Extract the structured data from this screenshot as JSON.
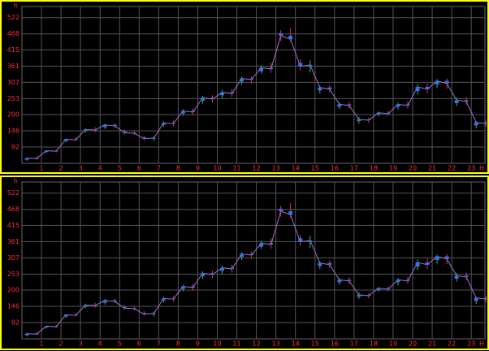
{
  "chart_data": [
    {
      "type": "candlestick",
      "y_unit": "h",
      "x_unit": "H",
      "xlim": [
        0,
        23.7
      ],
      "xticks": [
        1,
        2,
        3,
        4,
        5,
        6,
        7,
        8,
        9,
        10,
        11,
        12,
        13,
        14,
        15,
        16,
        17,
        18,
        19,
        20,
        21,
        22,
        23
      ],
      "ylim": [
        38,
        559
      ],
      "yticks": [
        92,
        146,
        200,
        253,
        307,
        361,
        415,
        468,
        522
      ],
      "grid": true,
      "color": "#3a6ef0",
      "up_wick_color": "#30c040",
      "down_wick_color": "#e03040",
      "line_color": "#a070c8",
      "x": [
        0.25,
        0.75,
        1.25,
        1.75,
        2.25,
        2.75,
        3.25,
        3.75,
        4.25,
        4.75,
        5.25,
        5.75,
        6.25,
        6.75,
        7.25,
        7.75,
        8.25,
        8.75,
        9.25,
        9.75,
        10.25,
        10.75,
        11.25,
        11.75,
        12.25,
        12.75,
        13.25,
        13.75,
        14.25,
        14.75,
        15.25,
        15.75,
        16.25,
        16.75,
        17.25,
        17.75,
        18.25,
        18.75,
        19.25,
        19.75,
        20.25,
        20.75,
        21.25,
        21.75,
        22.25,
        22.75,
        23.25,
        23.75
      ],
      "open": [
        50,
        55,
        76,
        80,
        112,
        118,
        145,
        150,
        158,
        166,
        144,
        140,
        124,
        120,
        166,
        172,
        204,
        212,
        246,
        256,
        264,
        274,
        310,
        320,
        344,
        356,
        470,
        462,
        372,
        360,
        280,
        290,
        226,
        234,
        178,
        184,
        200,
        206,
        226,
        234,
        278,
        292,
        300,
        312,
        238,
        248,
        164,
        174
      ],
      "high": [
        58,
        60,
        82,
        84,
        120,
        124,
        155,
        158,
        170,
        172,
        150,
        146,
        130,
        128,
        178,
        180,
        218,
        220,
        262,
        264,
        282,
        284,
        326,
        328,
        364,
        372,
        480,
        488,
        384,
        380,
        296,
        298,
        240,
        242,
        192,
        190,
        210,
        212,
        240,
        244,
        302,
        304,
        318,
        320,
        256,
        258,
        178,
        180
      ],
      "low": [
        46,
        50,
        72,
        74,
        108,
        112,
        140,
        142,
        152,
        156,
        134,
        132,
        114,
        112,
        158,
        160,
        196,
        198,
        236,
        240,
        254,
        258,
        300,
        304,
        336,
        338,
        444,
        440,
        346,
        340,
        270,
        274,
        218,
        220,
        170,
        172,
        194,
        196,
        216,
        220,
        266,
        270,
        288,
        286,
        228,
        232,
        154,
        160
      ],
      "close": [
        55,
        54,
        80,
        78,
        118,
        116,
        150,
        149,
        166,
        162,
        140,
        138,
        120,
        122,
        172,
        170,
        212,
        208,
        256,
        251,
        274,
        270,
        320,
        316,
        356,
        351,
        462,
        450,
        360,
        365,
        290,
        284,
        234,
        230,
        184,
        181,
        206,
        203,
        234,
        230,
        292,
        284,
        312,
        303,
        248,
        243,
        174,
        170
      ]
    },
    {
      "type": "candlestick",
      "y_unit": "h",
      "x_unit": "H",
      "xlim": [
        0,
        23.7
      ],
      "xticks": [
        1,
        2,
        3,
        4,
        5,
        6,
        7,
        8,
        9,
        10,
        11,
        12,
        13,
        14,
        15,
        16,
        17,
        18,
        19,
        20,
        21,
        22,
        23
      ],
      "ylim": [
        38,
        559
      ],
      "yticks": [
        92,
        146,
        200,
        253,
        307,
        361,
        415,
        468,
        522
      ],
      "grid": true,
      "color": "#3a6ef0",
      "up_wick_color": "#30c040",
      "down_wick_color": "#e03040",
      "line_color": "#a070c8",
      "x": [
        0.25,
        0.75,
        1.25,
        1.75,
        2.25,
        2.75,
        3.25,
        3.75,
        4.25,
        4.75,
        5.25,
        5.75,
        6.25,
        6.75,
        7.25,
        7.75,
        8.25,
        8.75,
        9.25,
        9.75,
        10.25,
        10.75,
        11.25,
        11.75,
        12.25,
        12.75,
        13.25,
        13.75,
        14.25,
        14.75,
        15.25,
        15.75,
        16.25,
        16.75,
        17.25,
        17.75,
        18.25,
        18.75,
        19.25,
        19.75,
        20.25,
        20.75,
        21.25,
        21.75,
        22.25,
        22.75,
        23.25,
        23.75
      ],
      "open": [
        50,
        55,
        76,
        80,
        112,
        118,
        145,
        150,
        158,
        166,
        144,
        140,
        124,
        120,
        166,
        172,
        204,
        212,
        246,
        256,
        264,
        274,
        310,
        320,
        344,
        356,
        470,
        462,
        372,
        360,
        280,
        290,
        226,
        234,
        178,
        184,
        200,
        206,
        226,
        234,
        278,
        292,
        300,
        312,
        238,
        248,
        164,
        174
      ],
      "high": [
        58,
        60,
        82,
        84,
        120,
        124,
        155,
        158,
        170,
        172,
        150,
        146,
        130,
        128,
        178,
        180,
        218,
        220,
        262,
        264,
        282,
        284,
        326,
        328,
        364,
        372,
        480,
        488,
        384,
        380,
        296,
        298,
        240,
        242,
        192,
        190,
        210,
        212,
        240,
        244,
        302,
        304,
        318,
        320,
        256,
        258,
        178,
        180
      ],
      "low": [
        46,
        50,
        72,
        74,
        108,
        112,
        140,
        142,
        152,
        156,
        134,
        132,
        114,
        112,
        158,
        160,
        196,
        198,
        236,
        240,
        254,
        258,
        300,
        304,
        336,
        338,
        444,
        440,
        346,
        340,
        270,
        274,
        218,
        220,
        170,
        172,
        194,
        196,
        216,
        220,
        266,
        270,
        288,
        286,
        228,
        232,
        154,
        160
      ],
      "close": [
        55,
        54,
        80,
        78,
        118,
        116,
        150,
        149,
        166,
        162,
        140,
        138,
        120,
        122,
        172,
        170,
        212,
        208,
        256,
        251,
        274,
        270,
        320,
        316,
        356,
        351,
        462,
        450,
        360,
        365,
        290,
        284,
        234,
        230,
        184,
        181,
        206,
        203,
        234,
        230,
        292,
        284,
        312,
        303,
        248,
        243,
        174,
        170
      ]
    }
  ]
}
